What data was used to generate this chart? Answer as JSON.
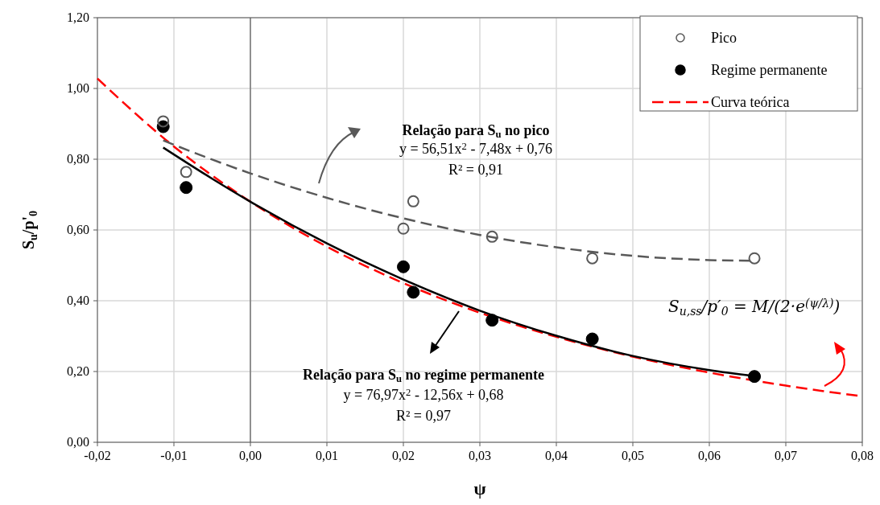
{
  "chart_data": {
    "type": "scatter",
    "xlabel": "ψ",
    "ylabel": "S$_{u}$/p'$_{0}$",
    "xlim": [
      -0.02,
      0.08
    ],
    "ylim": [
      0,
      1.2
    ],
    "xticks": [
      {
        "value": -0.02,
        "label": "-0,02"
      },
      {
        "value": -0.01,
        "label": "-0,01"
      },
      {
        "value": 0,
        "label": "0,00"
      },
      {
        "value": 0.01,
        "label": "0,01"
      },
      {
        "value": 0.02,
        "label": "0,02"
      },
      {
        "value": 0.03,
        "label": "0,03"
      },
      {
        "value": 0.04,
        "label": "0,04"
      },
      {
        "value": 0.05,
        "label": "0,05"
      },
      {
        "value": 0.06,
        "label": "0,06"
      },
      {
        "value": 0.07,
        "label": "0,07"
      },
      {
        "value": 0.08,
        "label": "0,08"
      }
    ],
    "yticks": [
      {
        "value": 0,
        "label": "0,00"
      },
      {
        "value": 0.2,
        "label": "0,20"
      },
      {
        "value": 0.4,
        "label": "0,40"
      },
      {
        "value": 0.6,
        "label": "0,60"
      },
      {
        "value": 0.8,
        "label": "0,80"
      },
      {
        "value": 1,
        "label": "1,00"
      },
      {
        "value": 1.2,
        "label": "1,20"
      }
    ],
    "grid": true,
    "legend": "top right",
    "ref_lines": [
      {
        "axis": "x",
        "value": 0,
        "color": "#595959"
      }
    ],
    "series": [
      {
        "name": "Pico",
        "marker": "circle-open",
        "color": "#595959",
        "x": [
          -0.0114,
          -0.0084,
          0.02,
          0.0213,
          0.0316,
          0.0447,
          0.0659
        ],
        "values": [
          0.907,
          0.764,
          0.604,
          0.681,
          0.581,
          0.52,
          0.52
        ]
      },
      {
        "name": "Regime permanente",
        "marker": "circle",
        "color": "#000000",
        "x": [
          -0.0114,
          -0.0084,
          0.02,
          0.0213,
          0.0316,
          0.0447,
          0.0659
        ],
        "values": [
          0.892,
          0.72,
          0.496,
          0.424,
          0.345,
          0.292,
          0.186
        ]
      },
      {
        "name": "Curva teórica",
        "type": "line",
        "line_style": "dashed",
        "color": "#ff0000",
        "x": [
          -0.02,
          -0.01,
          0,
          0.01,
          0.02,
          0.03,
          0.04,
          0.05,
          0.06,
          0.07,
          0.08
        ],
        "values": [
          1.028,
          0.836,
          0.68,
          0.553,
          0.45,
          0.366,
          0.298,
          0.242,
          0.197,
          0.16,
          0.13
        ]
      },
      {
        "type": "line",
        "line_style": "dashed",
        "color": "#595959",
        "x": [
          -0.0114,
          -0.005,
          0,
          0.01,
          0.02,
          0.03,
          0.04,
          0.05,
          0.06,
          0.0659
        ],
        "values": [
          0.853,
          0.799,
          0.76,
          0.691,
          0.633,
          0.586,
          0.551,
          0.527,
          0.515,
          0.513
        ]
      },
      {
        "type": "line",
        "line_style": "solid",
        "color": "#000000",
        "x": [
          -0.0114,
          -0.005,
          0,
          0.01,
          0.02,
          0.03,
          0.04,
          0.05,
          0.06,
          0.0659
        ],
        "values": [
          0.833,
          0.745,
          0.68,
          0.562,
          0.46,
          0.372,
          0.301,
          0.244,
          0.204,
          0.187
        ]
      }
    ],
    "annotations": [
      "Relação para S$_{u}$ no pico",
      "y = 56,51x$^{2}$ - 7,48x + 0,76",
      "R² = 0,91",
      "Relação para S$_{u}$ no regime permanente",
      "y = 76,97x$^{2}$ - 12,56x + 0,68",
      "R² = 0,97",
      "S$_{u,ss}$/p′$_{0}$ = M/(2·e$^{(ψ/λ)}$)"
    ]
  }
}
